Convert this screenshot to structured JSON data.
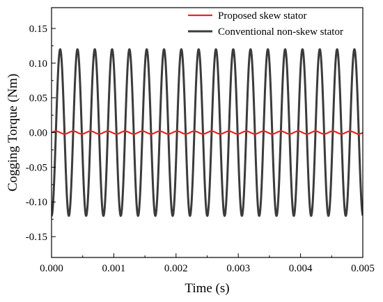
{
  "chart_data": {
    "type": "line",
    "title": "",
    "xlabel": "Time (s)",
    "ylabel": "Cogging Torque (Nm)",
    "xlim": [
      0,
      0.005
    ],
    "ylim": [
      -0.18,
      0.18
    ],
    "x_ticks": [
      0,
      0.001,
      0.002,
      0.003,
      0.004,
      0.005
    ],
    "x_tick_labels": [
      "0.000",
      "0.001",
      "0.002",
      "0.003",
      "0.004",
      "0.005"
    ],
    "y_ticks": [
      -0.15,
      -0.1,
      -0.05,
      0,
      0.05,
      0.1,
      0.15
    ],
    "y_tick_labels": [
      "-0.15",
      "-0.10",
      "-0.05",
      "0.00",
      "0.05",
      "0.10",
      "0.15"
    ],
    "grid": false,
    "legend_position": "top-right",
    "series": [
      {
        "name": "Proposed skew stator",
        "color": "#ee2222",
        "waveform": "sinusoid",
        "amplitude": 0.002,
        "period": 0.000278,
        "phase": 0,
        "offset": 0
      },
      {
        "name": "Conventional non-skew stator",
        "color": "#3b3b3b",
        "waveform": "sinusoid",
        "amplitude": 0.12,
        "period": 0.000278,
        "phase": -1.5708,
        "offset": 0
      }
    ]
  }
}
